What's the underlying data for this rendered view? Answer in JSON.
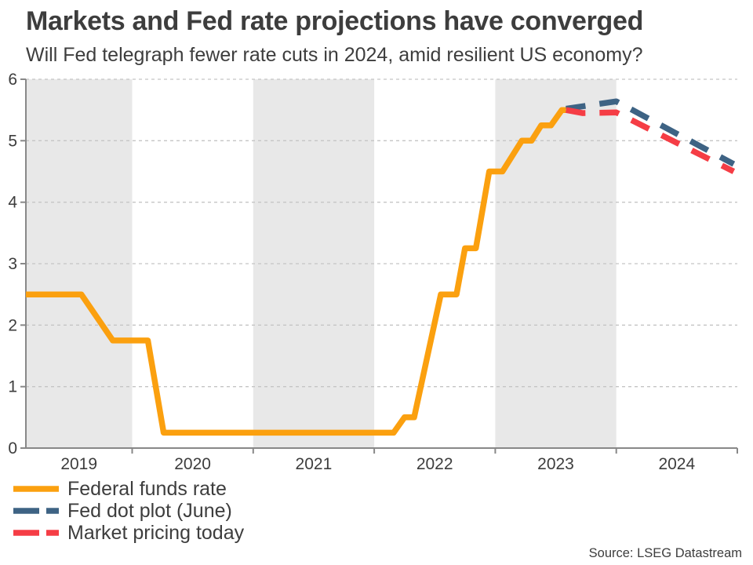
{
  "header": {
    "title": "Markets and Fed rate projections have converged",
    "subtitle": "Will Fed telegraph fewer rate cuts in 2024, amid resilient US economy?"
  },
  "source": "Source: LSEG Datastream",
  "colors": {
    "federal_funds": "#FBA00F",
    "dot_plot": "#3E6384",
    "market_pricing": "#F53D45",
    "band": "#E8E8E8",
    "gridline": "#C5C5C5",
    "axis": "#888888",
    "text": "#3D3D3D"
  },
  "legend": {
    "items": [
      {
        "label": "Federal funds rate",
        "color": "#FBA00F",
        "style": "solid"
      },
      {
        "label": "Fed dot plot (June)",
        "color": "#3E6384",
        "style": "dashed"
      },
      {
        "label": "Market pricing today",
        "color": "#F53D45",
        "style": "dashed"
      }
    ]
  },
  "chart_data": {
    "type": "line",
    "title": "Markets and Fed rate projections have converged",
    "subtitle": "Will Fed telegraph fewer rate cuts in 2024, amid resilient US economy?",
    "xlabel": "",
    "ylabel": "",
    "x_domain": [
      2019.122,
      2025.0
    ],
    "ylim": [
      0,
      6
    ],
    "y_ticks": [
      0,
      1,
      2,
      3,
      4,
      5,
      6
    ],
    "x_tick_years": [
      2019,
      2020,
      2021,
      2022,
      2023,
      2024
    ],
    "shaded_years": [
      2019,
      2021,
      2023
    ],
    "grid": "horizontal-dashed",
    "legend_position": "bottom-left",
    "series": [
      {
        "name": "Federal funds rate",
        "style": "solid",
        "color": "#FBA00F",
        "points": [
          [
            2019.122,
            2.5
          ],
          [
            2019.58,
            2.5
          ],
          [
            2019.84,
            1.75
          ],
          [
            2020.13,
            1.75
          ],
          [
            2020.26,
            0.25
          ],
          [
            2022.16,
            0.25
          ],
          [
            2022.25,
            0.5
          ],
          [
            2022.33,
            0.5
          ],
          [
            2022.55,
            2.5
          ],
          [
            2022.68,
            2.5
          ],
          [
            2022.75,
            3.25
          ],
          [
            2022.84,
            3.25
          ],
          [
            2022.95,
            4.5
          ],
          [
            2023.06,
            4.5
          ],
          [
            2023.22,
            5.0
          ],
          [
            2023.3,
            5.0
          ],
          [
            2023.38,
            5.25
          ],
          [
            2023.46,
            5.25
          ],
          [
            2023.55,
            5.5
          ],
          [
            2023.585,
            5.5
          ]
        ]
      },
      {
        "name": "Fed dot plot (June)",
        "style": "dashed",
        "color": "#3E6384",
        "points": [
          [
            2023.585,
            5.52
          ],
          [
            2024.0,
            5.64
          ],
          [
            2024.97,
            4.62
          ]
        ]
      },
      {
        "name": "Market pricing today",
        "style": "dashed",
        "color": "#F53D45",
        "points": [
          [
            2023.585,
            5.5
          ],
          [
            2023.72,
            5.45
          ],
          [
            2024.0,
            5.46
          ],
          [
            2024.97,
            4.5
          ]
        ]
      }
    ]
  }
}
